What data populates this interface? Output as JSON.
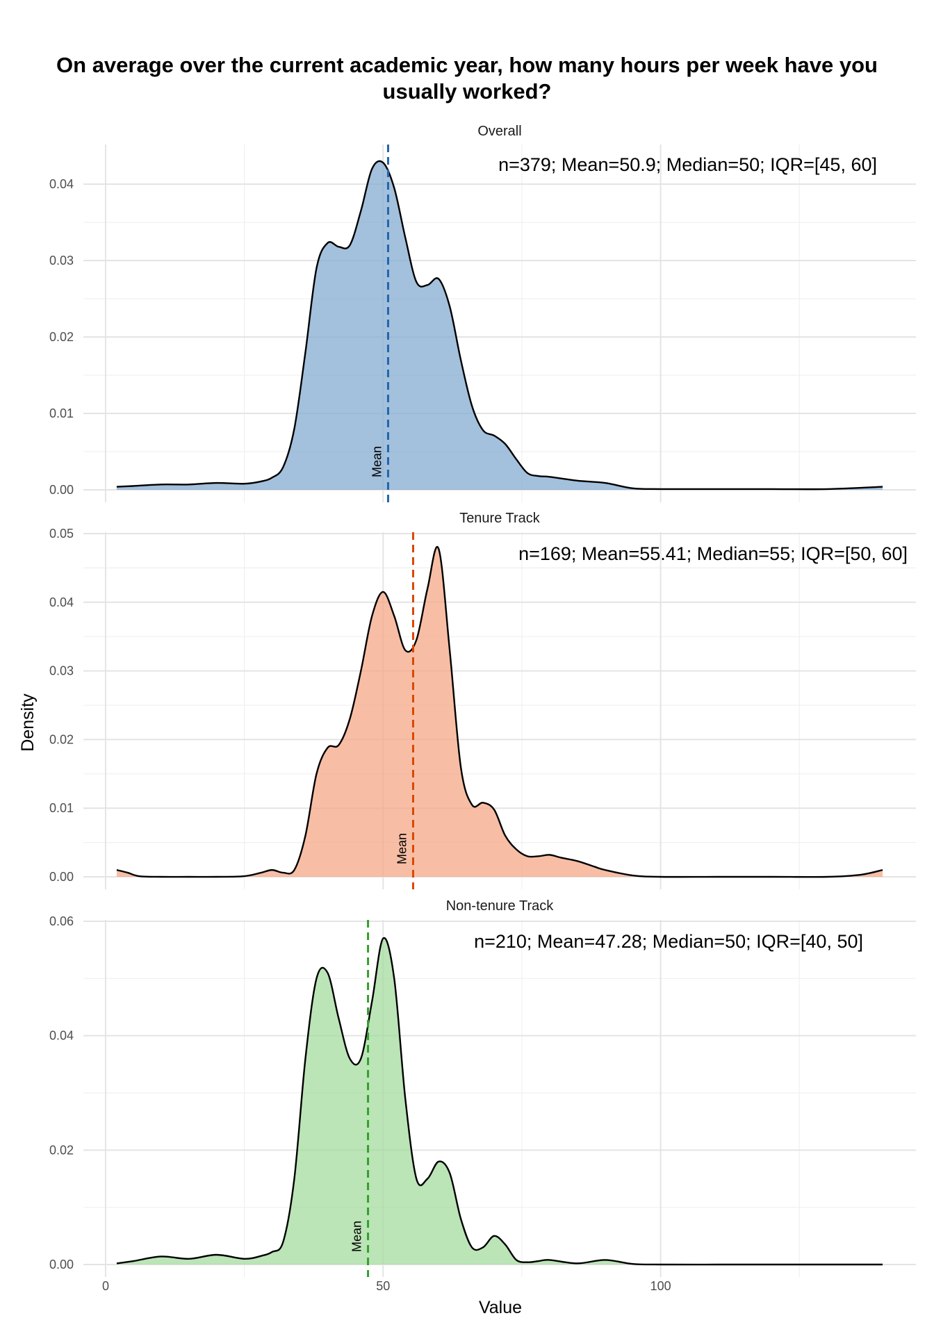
{
  "chart_data": {
    "type": "area",
    "title": "On average over the current academic year, how many hours per week have you usually worked?",
    "xlabel": "Value",
    "ylabel": "Density",
    "xlim": [
      -4,
      146
    ],
    "x_ticks": [
      0,
      50,
      100
    ],
    "grid": true,
    "mean_label": "Mean",
    "panels": [
      {
        "name": "Overall",
        "color": "#7fa8cf",
        "mean_color": "#2166ac",
        "mean": 50.9,
        "annotation": "n=379; Mean=50.9; Median=50; IQR=[45, 60]",
        "ylim": [
          0,
          0.045
        ],
        "y_ticks": [
          "0.00",
          "0.01",
          "0.02",
          "0.03",
          "0.04"
        ],
        "y_tick_values": [
          0,
          0.01,
          0.02,
          0.03,
          0.04
        ],
        "x": [
          2,
          5,
          10,
          15,
          20,
          25,
          28,
          30,
          32,
          34,
          36,
          38,
          40,
          42,
          44,
          46,
          48,
          50,
          52,
          54,
          56,
          58,
          60,
          62,
          64,
          66,
          68,
          70,
          72,
          74,
          76,
          78,
          80,
          85,
          90,
          95,
          100,
          110,
          120,
          130,
          140
        ],
        "y": [
          0.0004,
          0.0005,
          0.0007,
          0.0007,
          0.0009,
          0.0008,
          0.0011,
          0.0016,
          0.003,
          0.008,
          0.018,
          0.029,
          0.0323,
          0.0318,
          0.032,
          0.0365,
          0.042,
          0.0428,
          0.0395,
          0.033,
          0.0272,
          0.0268,
          0.0276,
          0.024,
          0.017,
          0.011,
          0.0078,
          0.0071,
          0.006,
          0.004,
          0.0022,
          0.0018,
          0.0017,
          0.0012,
          0.0009,
          0.0002,
          0.0001,
          0.0001,
          0.0001,
          0.0001,
          0.0004
        ]
      },
      {
        "name": "Tenure Track",
        "color": "#f4a582",
        "mean_color": "#d94801",
        "mean": 55.41,
        "annotation": "n=169; Mean=55.41; Median=55; IQR=[50, 60]",
        "ylim": [
          0,
          0.05
        ],
        "y_ticks": [
          "0.00",
          "0.01",
          "0.02",
          "0.03",
          "0.04",
          "0.05"
        ],
        "y_tick_values": [
          0,
          0.01,
          0.02,
          0.03,
          0.04,
          0.05
        ],
        "x": [
          2,
          4,
          6,
          10,
          15,
          20,
          25,
          28,
          30,
          32,
          34,
          36,
          38,
          40,
          42,
          44,
          46,
          48,
          50,
          52,
          54,
          56,
          58,
          60,
          62,
          64,
          66,
          68,
          70,
          72,
          74,
          76,
          78,
          80,
          82,
          85,
          88,
          90,
          95,
          100,
          110,
          120,
          130,
          136,
          140
        ],
        "y": [
          0.001,
          0.0006,
          0.0001,
          0.0,
          0.0,
          0.0,
          0.0001,
          0.0006,
          0.001,
          0.0006,
          0.001,
          0.006,
          0.015,
          0.0188,
          0.0192,
          0.023,
          0.03,
          0.038,
          0.0415,
          0.038,
          0.033,
          0.0345,
          0.042,
          0.0478,
          0.033,
          0.016,
          0.0105,
          0.0108,
          0.0098,
          0.006,
          0.004,
          0.003,
          0.003,
          0.0032,
          0.0028,
          0.0023,
          0.0015,
          0.001,
          0.0002,
          0.0,
          0.0,
          0.0,
          0.0,
          0.0003,
          0.001
        ]
      },
      {
        "name": "Non-tenure Track",
        "color": "#a1d99b",
        "mean_color": "#33a02c",
        "mean": 47.28,
        "annotation": "n=210; Mean=47.28; Median=50; IQR=[40, 50]",
        "ylim": [
          0,
          0.06
        ],
        "y_ticks": [
          "0.00",
          "0.02",
          "0.04",
          "0.06"
        ],
        "y_tick_values": [
          0,
          0.02,
          0.04,
          0.06
        ],
        "x": [
          2,
          5,
          10,
          15,
          20,
          25,
          28,
          30,
          32,
          34,
          36,
          38,
          40,
          42,
          44,
          46,
          48,
          50,
          52,
          54,
          56,
          58,
          60,
          62,
          64,
          66,
          68,
          70,
          72,
          74,
          76,
          78,
          80,
          85,
          90,
          95,
          100,
          110,
          120,
          130,
          140
        ],
        "y": [
          0.0002,
          0.0006,
          0.0014,
          0.001,
          0.0017,
          0.001,
          0.0015,
          0.0022,
          0.004,
          0.015,
          0.036,
          0.05,
          0.051,
          0.043,
          0.036,
          0.036,
          0.046,
          0.057,
          0.05,
          0.029,
          0.015,
          0.015,
          0.018,
          0.016,
          0.008,
          0.003,
          0.003,
          0.005,
          0.0035,
          0.0008,
          0.0004,
          0.0006,
          0.0008,
          0.0002,
          0.0008,
          0.0001,
          0.0,
          0.0,
          0.0,
          0.0,
          0.0
        ]
      }
    ]
  }
}
